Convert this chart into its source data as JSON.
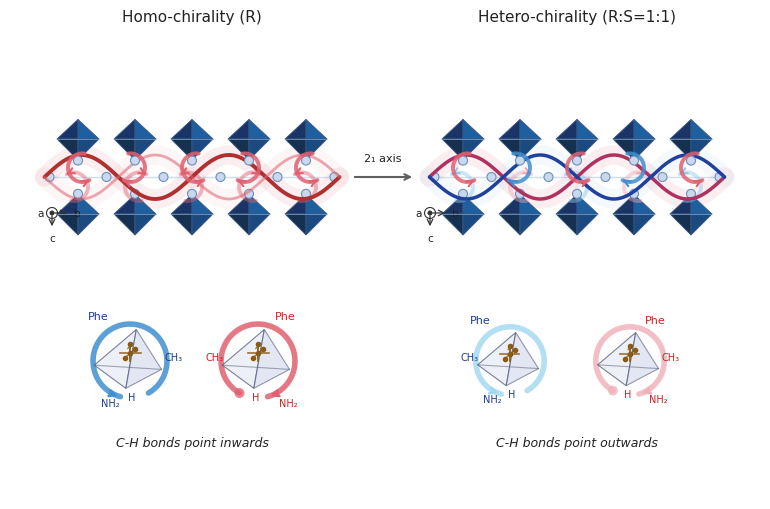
{
  "bg_color": "#ffffff",
  "title_left": "Homo-chirality (R)",
  "title_right": "Hetero-chirality (R:S=1:1)",
  "axis_label_sub": "2₁ axis",
  "caption_left": "C-H bonds point inwards",
  "caption_right": "C-H bonds point outwards",
  "oct_dark": "#1a3565",
  "oct_mid": "#1e5fa0",
  "oct_light": "#2472cc",
  "oct_bottom": "#163050",
  "node_face": "#c8d8ee",
  "node_edge": "#7090b8",
  "ribbon_red_dark": "#b03030",
  "ribbon_red": "#e06070",
  "ribbon_pink": "#f0a8b0",
  "ribbon_blue_dark": "#2040a0",
  "ribbon_blue": "#4090d0",
  "ribbon_cyan": "#90c8e8",
  "arrow_gray": "#606060",
  "text_blue": "#1a3a9a",
  "text_red": "#cc2020",
  "text_dark": "#222222",
  "fs_title": 11,
  "fs_label": 8,
  "fs_caption": 9,
  "fs_axis": 7.5,
  "fs_mol_label": 8
}
